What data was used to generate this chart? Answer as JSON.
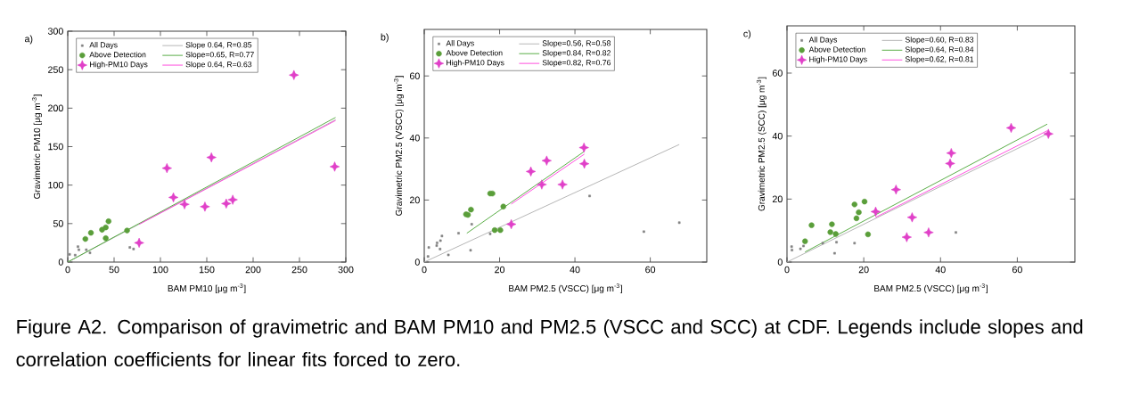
{
  "chart_data": [
    {
      "type": "scatter",
      "title": "a)",
      "xlabel": "BAM PM10 [μg m$^{-3}$]",
      "ylabel": "Gravimetric PM10 [μg m$^{-3}$]",
      "xlim": [
        0,
        300
      ],
      "ylim": [
        0,
        300
      ],
      "xticks": [
        0,
        50,
        100,
        150,
        200,
        250,
        300
      ],
      "yticks": [
        0,
        50,
        100,
        150,
        200,
        250,
        300
      ],
      "legend": "top left",
      "annotations": [
        "Figure A2. Comparison of gravimetric and BAM PM10 and PM2.5 (VSCC and SCC) at CDF. Legends include slopes and correlation coefficients for linear fits forced to zero."
      ],
      "series": [
        {
          "name": "All Days",
          "type": "scatter",
          "marker": "square",
          "color": "#808080",
          "x": [
            2,
            8,
            11,
            12,
            20,
            24,
            67,
            71
          ],
          "values": [
            10,
            9,
            20,
            16,
            16,
            12,
            19,
            17
          ]
        },
        {
          "name": "Slope 0.64, R=0.85",
          "type": "line",
          "color": "#b0b0b0",
          "x": [
            0,
            289
          ],
          "values": [
            0,
            185
          ]
        },
        {
          "name": "Above Detection",
          "type": "scatter",
          "marker": "circle",
          "color": "#5a9e3a",
          "x": [
            19,
            25,
            37,
            41,
            41,
            44,
            64
          ],
          "values": [
            30,
            38,
            42,
            45,
            31,
            53,
            41
          ]
        },
        {
          "name": "Slope=0.65, R=0.77",
          "type": "line",
          "color": "#4fa83a",
          "x": [
            0,
            289
          ],
          "values": [
            0,
            188
          ]
        },
        {
          "name": "High-PM10 Days",
          "type": "scatter",
          "marker": "star",
          "color": "#e040c8",
          "x": [
            77,
            107,
            114,
            126,
            148,
            155,
            171,
            178,
            244,
            288
          ],
          "values": [
            25,
            122,
            84,
            75,
            72,
            136,
            76,
            81,
            243,
            124
          ]
        },
        {
          "name": "Slope 0.64, R=0.63",
          "type": "line",
          "color": "#ff44dd",
          "x": [
            77,
            289
          ],
          "values": [
            49,
            184
          ]
        }
      ]
    },
    {
      "type": "scatter",
      "title": "b)",
      "xlabel": "BAM PM2.5 (VSCC) [μg m$^{-3}$]",
      "ylabel": "Gravimetric PM2.5 (VSCC) [μg m$^{-3}$]",
      "xlim": [
        0,
        75
      ],
      "ylim": [
        0,
        75
      ],
      "xticks": [
        0,
        20,
        40,
        60
      ],
      "yticks": [
        0,
        20,
        40,
        60
      ],
      "legend": "top left",
      "series": [
        {
          "name": "All Days",
          "type": "scatter",
          "marker": "square",
          "color": "#808080",
          "x": [
            1.0,
            1.2,
            3.3,
            3.4,
            4.2,
            4.3,
            4.7,
            6.4,
            9.1,
            12.3,
            12.6,
            17.5,
            43.9,
            58.3,
            67.7
          ],
          "values": [
            1.8,
            4.7,
            5.3,
            6.2,
            4.2,
            6.9,
            8.4,
            2.3,
            9.3,
            3.8,
            12.2,
            9.1,
            21.3,
            9.8,
            12.7
          ]
        },
        {
          "name": "Slope=0.56, R=0.58",
          "type": "line",
          "color": "#b0b0b0",
          "x": [
            0,
            67.7
          ],
          "values": [
            0,
            37.9
          ]
        },
        {
          "name": "Above Detection",
          "type": "scatter",
          "marker": "circle",
          "color": "#5a9e3a",
          "x": [
            11.1,
            11.6,
            12.4,
            17.5,
            18.1,
            21.0,
            18.7,
            20.2
          ],
          "values": [
            15.4,
            15.2,
            16.9,
            22.1,
            22.1,
            17.9,
            10.3,
            10.3
          ]
        },
        {
          "name": "Slope=0.84, R=0.82",
          "type": "line",
          "color": "#4fa83a",
          "x": [
            11.3,
            42.4
          ],
          "values": [
            9.3,
            35.6
          ]
        },
        {
          "name": "High-PM10 Days",
          "type": "scatter",
          "marker": "star",
          "color": "#e040c8",
          "x": [
            23.1,
            28.3,
            31.2,
            32.5,
            36.7,
            42.4,
            42.5
          ],
          "values": [
            12.2,
            29.2,
            25.0,
            32.7,
            25.0,
            36.9,
            31.7
          ]
        },
        {
          "name": "Slope=0.82, R=0.76",
          "type": "line",
          "color": "#ff44dd",
          "x": [
            23.1,
            42.5
          ],
          "values": [
            18.7,
            34.8
          ]
        }
      ]
    },
    {
      "type": "scatter",
      "title": "c)",
      "xlabel": "BAM PM2.5 (VSCC) [μg m$^{-3}$]",
      "ylabel": "Gravimetric PM2.5 (SCC) [μg m$^{-3}$]",
      "xlim": [
        0,
        75
      ],
      "ylim": [
        0,
        75
      ],
      "xticks": [
        0,
        20,
        40,
        60
      ],
      "yticks": [
        0,
        20,
        40,
        60
      ],
      "legend": "top left",
      "series": [
        {
          "name": "All Days",
          "type": "scatter",
          "marker": "square",
          "color": "#808080",
          "x": [
            1.2,
            1.3,
            3.5,
            4.3,
            9.3,
            12.4,
            12.9,
            17.6,
            44.0
          ],
          "values": [
            4.9,
            3.8,
            4.2,
            5.1,
            6.0,
            2.8,
            6.3,
            6.0,
            9.4
          ]
        },
        {
          "name": "Slope=0.60, R=0.83",
          "type": "line",
          "color": "#b0b0b0",
          "x": [
            0,
            67.8
          ],
          "values": [
            0,
            40.7
          ]
        },
        {
          "name": "Above Detection",
          "type": "scatter",
          "marker": "circle",
          "color": "#5a9e3a",
          "x": [
            4.7,
            6.4,
            11.3,
            11.7,
            12.7,
            17.6,
            18.1,
            18.7,
            20.2,
            21.1
          ],
          "values": [
            6.6,
            11.7,
            9.5,
            12.0,
            8.9,
            18.3,
            13.9,
            15.8,
            19.2,
            8.8
          ]
        },
        {
          "name": "Slope=0.64, R=0.84",
          "type": "line",
          "color": "#4fa83a",
          "x": [
            4.7,
            67.8
          ],
          "values": [
            3.2,
            43.8
          ]
        },
        {
          "name": "High-PM10 Days",
          "type": "scatter",
          "marker": "star",
          "color": "#e040c8",
          "x": [
            23.1,
            28.4,
            31.2,
            32.6,
            36.9,
            42.5,
            42.8,
            58.4,
            68.1
          ],
          "values": [
            16.0,
            23.0,
            7.9,
            14.2,
            9.4,
            31.3,
            34.6,
            42.6,
            40.7
          ]
        },
        {
          "name": "Slope=0.62, R=0.81",
          "type": "line",
          "color": "#ff44dd",
          "x": [
            23.1,
            67.8
          ],
          "values": [
            14.2,
            41.7
          ]
        }
      ]
    }
  ]
}
